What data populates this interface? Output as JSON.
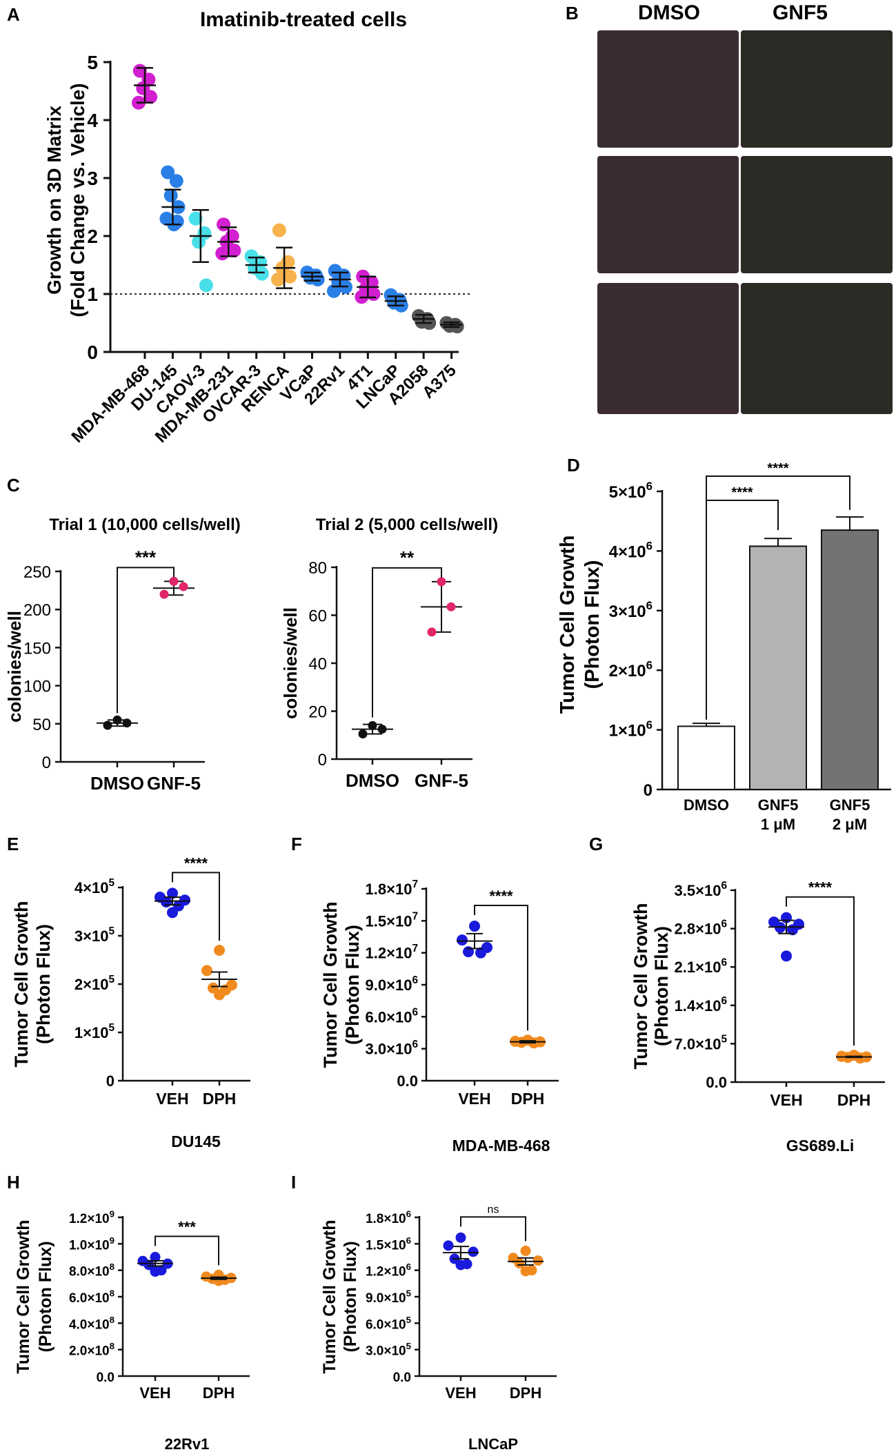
{
  "panels": {
    "A": {
      "letter": "A",
      "title": "Imatinib-treated cells",
      "ylabel1": "Growth on 3D Matrix",
      "ylabel2": "(Fold Change vs. Vehicle)",
      "ylim": [
        0,
        5
      ],
      "yticks": [
        "0",
        "1",
        "2",
        "3",
        "4",
        "5"
      ],
      "reference_line": 1,
      "groups": [
        {
          "name": "MDA-MB-468",
          "color": "#d21fd0",
          "mean": 4.6,
          "err": 0.3,
          "pts": [
            4.85,
            4.7,
            4.55,
            4.4,
            4.3
          ]
        },
        {
          "name": "DU-145",
          "color": "#2a7fe6",
          "mean": 2.5,
          "err": 0.3,
          "pts": [
            3.1,
            2.95,
            2.7,
            2.5,
            2.3,
            2.2,
            2.25
          ]
        },
        {
          "name": "CAOV-3",
          "color": "#49dfe8",
          "mean": 2.0,
          "err": 0.45,
          "pts": [
            2.3,
            2.05,
            1.9,
            1.15
          ]
        },
        {
          "name": "MDA-MB-231",
          "color": "#d21fd0",
          "mean": 1.9,
          "err": 0.25,
          "pts": [
            2.2,
            2.0,
            1.9,
            1.75,
            1.7
          ]
        },
        {
          "name": "OVCAR-3",
          "color": "#49dfe8",
          "mean": 1.5,
          "err": 0.13,
          "pts": [
            1.65,
            1.55,
            1.45,
            1.35
          ]
        },
        {
          "name": "RENCA",
          "color": "#f7b24b",
          "mean": 1.45,
          "err": 0.35,
          "pts": [
            2.1,
            1.55,
            1.45,
            1.3,
            1.25
          ]
        },
        {
          "name": "VCaP",
          "color": "#2a7fe6",
          "mean": 1.3,
          "err": 0.07,
          "pts": [
            1.37,
            1.32,
            1.28,
            1.25
          ]
        },
        {
          "name": "22Rv1",
          "color": "#2a7fe6",
          "mean": 1.25,
          "err": 0.12,
          "pts": [
            1.4,
            1.32,
            1.22,
            1.12,
            1.05
          ]
        },
        {
          "name": "4T1",
          "color": "#d21fd0",
          "mean": 1.12,
          "err": 0.18,
          "pts": [
            1.3,
            1.2,
            1.1,
            1.0,
            0.95
          ]
        },
        {
          "name": "LNCaP",
          "color": "#2a7fe6",
          "mean": 0.88,
          "err": 0.08,
          "pts": [
            0.98,
            0.9,
            0.85,
            0.8
          ]
        },
        {
          "name": "A2058",
          "color": "#555555",
          "mean": 0.57,
          "err": 0.07,
          "pts": [
            0.62,
            0.57,
            0.52,
            0.5
          ]
        },
        {
          "name": "A375",
          "color": "#555555",
          "mean": 0.47,
          "err": 0.04,
          "pts": [
            0.5,
            0.47,
            0.45,
            0.44
          ]
        }
      ]
    },
    "B": {
      "letter": "B",
      "col1": "DMSO",
      "col2": "GNF5"
    },
    "C": {
      "letter": "C",
      "plots": [
        {
          "title": "Trial 1 (10,000 cells/well)",
          "ylabel": "colonies/well",
          "ylim": [
            0,
            250
          ],
          "yticks": [
            "0",
            "50",
            "100",
            "150",
            "200",
            "250"
          ],
          "tickvals": [
            0,
            50,
            100,
            150,
            200,
            250
          ],
          "categories": [
            "DMSO",
            "GNF-5"
          ],
          "sig": "***",
          "groups": [
            {
              "mean": 51,
              "err": 4,
              "pts": [
                55,
                51,
                48
              ],
              "color": "#111111"
            },
            {
              "mean": 228,
              "err": 9,
              "pts": [
                237,
                230,
                220
              ],
              "color": "#e0256a"
            }
          ]
        },
        {
          "title": "Trial 2 (5,000 cells/well)",
          "ylabel": "colonies/well",
          "ylim": [
            0,
            80
          ],
          "yticks": [
            "0",
            "20",
            "40",
            "60",
            "80"
          ],
          "tickvals": [
            0,
            20,
            40,
            60,
            80
          ],
          "categories": [
            "DMSO",
            "GNF-5"
          ],
          "sig": "**",
          "groups": [
            {
              "mean": 12.5,
              "err": 2,
              "pts": [
                14,
                12.5,
                10.5
              ],
              "color": "#111111"
            },
            {
              "mean": 63.5,
              "err": 10.5,
              "pts": [
                74,
                63.5,
                53
              ],
              "color": "#e0256a"
            }
          ]
        }
      ]
    },
    "D": {
      "letter": "D",
      "ylabel1": "Tumor Cell Growth",
      "ylabel2": "(Photon Flux)",
      "ylim": [
        0,
        5000000
      ],
      "yticks": [
        "0",
        "1×10",
        "2×10",
        "3×10",
        "4×10",
        "5×10"
      ],
      "ytick_exp": "6",
      "categories": [
        [
          "DMSO",
          ""
        ],
        [
          "GNF5",
          "1 μM"
        ],
        [
          "GNF5",
          "2 μM"
        ]
      ],
      "values": [
        1060000,
        4080000,
        4350000
      ],
      "errors": [
        50000,
        130000,
        220000
      ],
      "colors": [
        "#ffffff",
        "#b3b3b3",
        "#737373"
      ],
      "sig": [
        "****",
        "****"
      ]
    },
    "small": [
      {
        "letter": "E",
        "caption": "DU145",
        "ylabel1": "Tumor Cell Growth",
        "ylabel2": "(Photon Flux)",
        "ylim": [
          0,
          400000
        ],
        "tickvals": [
          0,
          100000,
          200000,
          300000,
          400000
        ],
        "yticks": [
          "0",
          "1×10",
          "2×10",
          "3×10",
          "4×10"
        ],
        "ytick_exp": "5",
        "categories": [
          "VEH",
          "DPH"
        ],
        "sig": "****",
        "veh": {
          "mean": 372000,
          "err": 8000,
          "pts": [
            388000,
            380000,
            374000,
            370000,
            362000,
            348000
          ]
        },
        "dph": {
          "mean": 210000,
          "err": 15000,
          "pts": [
            270000,
            228000,
            198000,
            192000,
            188000,
            178000
          ]
        }
      },
      {
        "letter": "F",
        "caption": "MDA-MB-468",
        "ylabel1": "Tumor Cell Growth",
        "ylabel2": "(Photon Flux)",
        "ylim": [
          0,
          18000000
        ],
        "tickvals": [
          0,
          3000000,
          6000000,
          9000000,
          12000000,
          15000000,
          18000000
        ],
        "yticks": [
          "0.0",
          "3.0×10",
          "6.0×10",
          "9.0×10",
          "1.2×10",
          "1.5×10",
          "1.8×10"
        ],
        "ytick_exps": [
          "",
          "6",
          "6",
          "6",
          "7",
          "7",
          "7"
        ],
        "categories": [
          "VEH",
          "DPH"
        ],
        "sig": "****",
        "veh": {
          "mean": 13100000,
          "err": 700000,
          "pts": [
            14500000,
            13200000,
            12500000,
            12100000,
            12000000
          ]
        },
        "dph": {
          "mean": 3650000,
          "err": 100000,
          "pts": [
            3800000,
            3700000,
            3650000,
            3600000,
            3550000
          ]
        }
      },
      {
        "letter": "G",
        "caption": "GS689.Li",
        "ylabel1": "Tumor Cell Growth",
        "ylabel2": "(Photon Flux)",
        "ylim": [
          0,
          3500000
        ],
        "tickvals": [
          0,
          700000,
          1400000,
          2100000,
          2800000,
          3500000
        ],
        "yticks": [
          "0.0",
          "7.0×10",
          "1.4×10",
          "2.1×10",
          "2.8×10",
          "3.5×10"
        ],
        "ytick_exps": [
          "",
          "5",
          "6",
          "6",
          "6",
          "6"
        ],
        "categories": [
          "VEH",
          "DPH"
        ],
        "sig": "****",
        "veh": {
          "mean": 2830000,
          "err": 120000,
          "pts": [
            3000000,
            2920000,
            2880000,
            2820000,
            2780000,
            2300000
          ]
        },
        "dph": {
          "mean": 460000,
          "err": 10000,
          "pts": [
            490000,
            470000,
            460000,
            450000,
            440000
          ]
        }
      },
      {
        "letter": "H",
        "caption": "22Rv1",
        "ylabel1": "Tumor Cell Growth",
        "ylabel2": "(Photon Flux)",
        "ylim": [
          0,
          1200000000
        ],
        "tickvals": [
          0,
          200000000,
          400000000,
          600000000,
          800000000,
          1000000000,
          1200000000
        ],
        "yticks": [
          "0.0",
          "2.0×10",
          "4.0×10",
          "6.0×10",
          "8.0×10",
          "1.0×10",
          "1.2×10"
        ],
        "ytick_exps": [
          "",
          "8",
          "8",
          "8",
          "8",
          "9",
          "9"
        ],
        "categories": [
          "VEH",
          "DPH"
        ],
        "sig": "***",
        "veh": {
          "mean": 852000000,
          "err": 20000000,
          "pts": [
            900000000,
            870000000,
            850000000,
            840000000,
            800000000,
            790000000
          ]
        },
        "dph": {
          "mean": 740000000,
          "err": 8000000,
          "pts": [
            765000000,
            752000000,
            742000000,
            735000000,
            728000000,
            720000000
          ]
        }
      },
      {
        "letter": "I",
        "caption": "LNCaP",
        "ylabel1": "Tumor Cell Growth",
        "ylabel2": "(Photon Flux)",
        "ylim": [
          0,
          1800000
        ],
        "tickvals": [
          0,
          300000,
          600000,
          900000,
          1200000,
          1500000,
          1800000
        ],
        "yticks": [
          "0.0",
          "3.0×10",
          "6.0×10",
          "9.0×10",
          "1.2×10",
          "1.5×10",
          "1.8×10"
        ],
        "ytick_exps": [
          "",
          "5",
          "5",
          "5",
          "6",
          "6",
          "6"
        ],
        "categories": [
          "VEH",
          "DPH"
        ],
        "sig": "ns",
        "veh": {
          "mean": 1400000,
          "err": 70000,
          "pts": [
            1570000,
            1480000,
            1410000,
            1330000,
            1270000,
            1260000
          ]
        },
        "dph": {
          "mean": 1300000,
          "err": 40000,
          "pts": [
            1420000,
            1340000,
            1310000,
            1280000,
            1200000,
            1190000
          ]
        }
      }
    ]
  },
  "colors": {
    "veh": "#1a1adc",
    "dph": "#f08a1e",
    "axis": "#111111"
  }
}
